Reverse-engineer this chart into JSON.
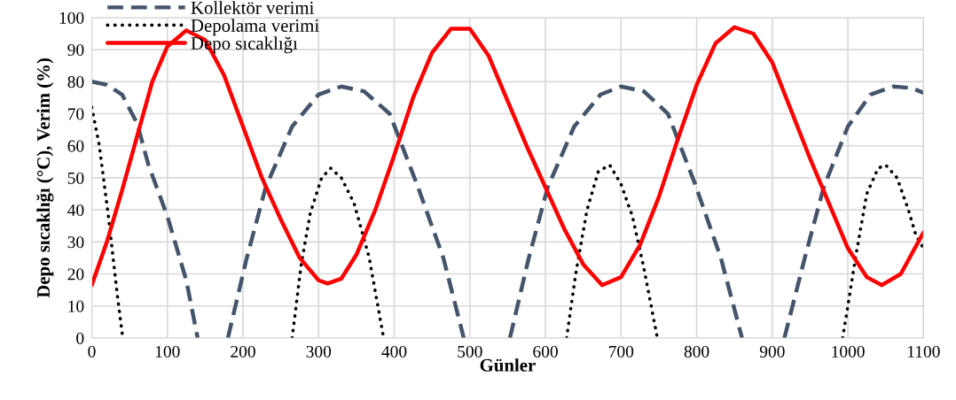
{
  "chart_data": {
    "type": "line",
    "xlabel": "Günler",
    "ylabel": "Depo sıcaklığı (°C), Verim (%)",
    "xlim": [
      0,
      1100
    ],
    "xticks": [
      0,
      100,
      200,
      300,
      400,
      500,
      600,
      700,
      800,
      900,
      1000,
      1100
    ],
    "ylim": [
      0,
      100
    ],
    "yticks": [
      0,
      10,
      20,
      30,
      40,
      50,
      60,
      70,
      80,
      90,
      100
    ],
    "grid": true,
    "legend": "top left",
    "marker": "none",
    "series": [
      {
        "name": "Kollektör verimi",
        "color": "#44546a",
        "line_style": "dashed",
        "x": [
          0,
          20,
          40,
          60,
          75,
          100,
          125,
          140,
          160,
          180,
          205,
          230,
          265,
          300,
          330,
          360,
          394,
          430,
          465,
          492,
          520,
          553,
          578,
          603,
          638,
          673,
          700,
          730,
          762,
          798,
          832,
          860,
          890,
          916,
          943,
          968,
          1000,
          1030,
          1060,
          1085,
          1100
        ],
        "values": [
          80,
          79,
          76,
          67,
          54,
          38,
          18,
          0,
          null,
          0,
          25,
          47,
          66,
          76,
          78.5,
          77,
          70,
          48,
          25,
          0,
          null,
          0,
          25,
          47,
          66,
          76,
          78.5,
          77,
          70,
          48,
          25,
          0,
          null,
          0,
          25,
          47,
          66,
          76,
          78.5,
          78,
          76.5
        ]
      },
      {
        "name": "Depolama verimi",
        "color": "#000000",
        "line_style": "dotted",
        "x": [
          0,
          10,
          22,
          34,
          41,
          150,
          265,
          277,
          289,
          304,
          316,
          330,
          347,
          367,
          386,
          500,
          628,
          640,
          655,
          670,
          685,
          700,
          715,
          730,
          748,
          870,
          993,
          1000,
          1010,
          1025,
          1040,
          1050,
          1065,
          1080,
          1090,
          1100
        ],
        "values": [
          72,
          60,
          38,
          13,
          0,
          null,
          0,
          23,
          39,
          50,
          53,
          50,
          42,
          25,
          0,
          null,
          0,
          20,
          40,
          52,
          54,
          48,
          38,
          22,
          0,
          null,
          0,
          10,
          25,
          45,
          53,
          54,
          50,
          40,
          32,
          28
        ]
      },
      {
        "name": "Depo sıcaklığı",
        "color": "#ff0000",
        "line_style": "solid",
        "x": [
          0,
          20,
          40,
          60,
          80,
          100,
          125,
          150,
          175,
          200,
          225,
          250,
          275,
          300,
          312,
          330,
          350,
          375,
          400,
          425,
          450,
          475,
          500,
          525,
          550,
          575,
          600,
          625,
          650,
          675,
          700,
          725,
          750,
          775,
          800,
          825,
          850,
          875,
          900,
          925,
          950,
          975,
          1000,
          1025,
          1045,
          1070,
          1100
        ],
        "values": [
          16.5,
          30,
          46,
          63,
          80,
          91,
          96,
          93,
          82,
          66,
          50,
          37,
          25,
          18,
          17,
          18.5,
          26,
          40,
          57,
          75,
          89,
          96.5,
          96.5,
          88,
          74,
          60,
          47,
          34,
          23,
          16.5,
          19,
          29,
          44,
          62,
          79,
          92,
          97,
          95,
          86,
          71,
          56,
          42,
          28,
          19,
          16.5,
          20,
          33
        ]
      }
    ]
  }
}
